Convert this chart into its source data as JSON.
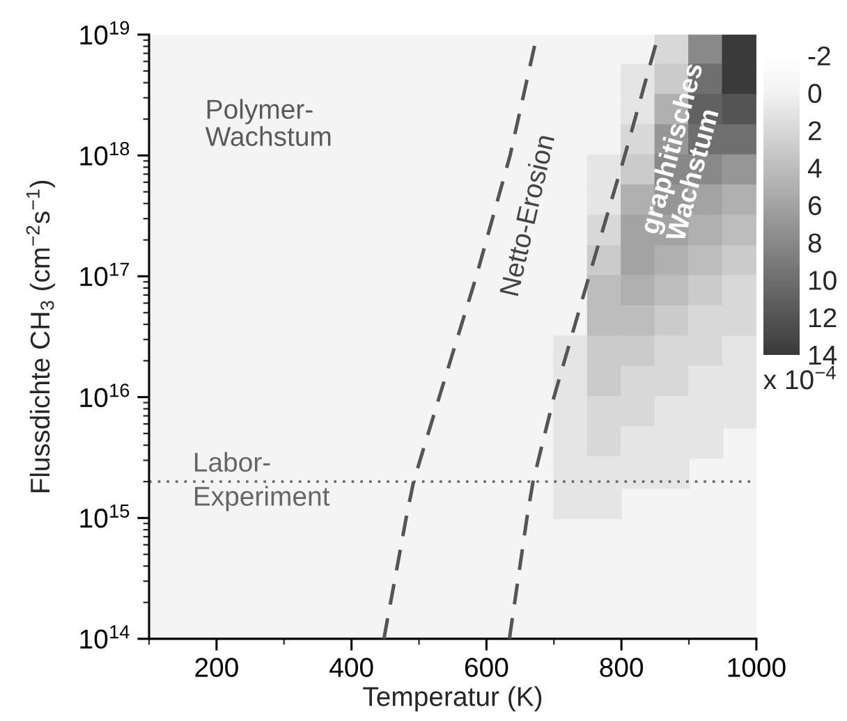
{
  "chart_data": {
    "type": "scatter",
    "xlabel": "Temperatur (K)",
    "ylabel": "Flussdichte CH$_{3}$ (cm$^{−2}$s$^{−1}$)",
    "clabel": "x 10$^{−4}$",
    "clim": [
      14,
      -2
    ],
    "cticks": [
      -2,
      0,
      2,
      4,
      6,
      8,
      10,
      12,
      14
    ],
    "xlim": [
      100,
      1000
    ],
    "xticks": [
      {
        "value": 100,
        "label": null
      },
      200,
      {
        "value": 300,
        "label": null
      },
      400,
      {
        "value": 500,
        "label": null
      },
      600,
      {
        "value": 700,
        "label": null
      },
      800,
      {
        "value": 900,
        "label": null
      },
      1000
    ],
    "ylim": [
      100000000000000.0,
      1e+19
    ],
    "yticks": [
      {
        "value": 100000000000000.0,
        "label": "10$^{14}$"
      },
      {
        "value": 1000000000000000.0,
        "label": "10$^{15}$"
      },
      {
        "value": 1e+16,
        "label": "10$^{16}$"
      },
      {
        "value": 1e+17,
        "label": "10$^{17}$"
      },
      {
        "value": 1e+18,
        "label": "10$^{18}$"
      },
      {
        "value": 1e+19,
        "label": "10$^{19}$"
      }
    ],
    "log": "y",
    "marker": "square",
    "x": [
      875,
      925,
      975,
      825,
      875,
      925,
      975,
      825,
      875,
      925,
      975,
      825,
      875,
      925,
      975,
      775,
      825,
      875,
      925,
      975,
      775,
      825,
      875,
      925,
      975,
      775,
      825,
      875,
      925,
      975,
      775,
      825,
      875,
      925,
      975,
      775,
      825,
      875,
      925,
      975,
      775,
      825,
      875,
      925,
      975,
      725,
      775,
      825,
      875,
      925,
      975,
      725,
      775,
      825,
      875,
      925,
      975,
      725,
      775,
      825,
      875,
      925,
      975,
      725,
      775,
      825,
      875,
      925,
      725,
      775,
      825,
      875,
      725,
      775
    ],
    "values": [
      7.5e+18,
      7.5e+18,
      7.5e+18,
      4.22e+18,
      4.22e+18,
      4.22e+18,
      4.22e+18,
      2.37e+18,
      2.37e+18,
      2.37e+18,
      2.37e+18,
      1.33e+18,
      1.33e+18,
      1.33e+18,
      1.33e+18,
      7.5e+17,
      7.5e+17,
      7.5e+17,
      7.5e+17,
      7.5e+17,
      4.22e+17,
      4.22e+17,
      4.22e+17,
      4.22e+17,
      4.22e+17,
      2.37e+17,
      2.37e+17,
      2.37e+17,
      2.37e+17,
      2.37e+17,
      1.33e+17,
      1.33e+17,
      1.33e+17,
      1.33e+17,
      1.33e+17,
      7.5e+16,
      7.5e+16,
      7.5e+16,
      7.5e+16,
      7.5e+16,
      4.22e+16,
      4.22e+16,
      4.22e+16,
      4.22e+16,
      4.22e+16,
      2.37e+16,
      2.37e+16,
      2.37e+16,
      2.37e+16,
      2.37e+16,
      2.37e+16,
      1.33e+16,
      1.33e+16,
      1.33e+16,
      1.33e+16,
      1.33e+16,
      1.33e+16,
      7500000000000000.0,
      7500000000000000.0,
      7500000000000000.0,
      7500000000000000.0,
      7500000000000000.0,
      7500000000000000.0,
      4220000000000000.0,
      4220000000000000.0,
      4220000000000000.0,
      4220000000000000.0,
      4220000000000000.0,
      2370000000000000.0,
      2370000000000000.0,
      2370000000000000.0,
      2370000000000000.0,
      1330000000000000.0,
      1330000000000000.0
    ],
    "colors": [
      "#d8d8d8",
      "#898989",
      "#3a3a3a",
      "#e5e5e5",
      "#cbcbcb",
      "#6f6f6f",
      "#3a3a3a",
      "#e5e5e5",
      "#b0b0b0",
      "#616161",
      "#545454",
      "#d8d8d8",
      "#969696",
      "#6f6f6f",
      "#6f6f6f",
      "#e5e5e5",
      "#cbcbcb",
      "#898989",
      "#898989",
      "#969696",
      "#e5e5e5",
      "#b0b0b0",
      "#969696",
      "#a3a3a3",
      "#b0b0b0",
      "#d8d8d8",
      "#a3a3a3",
      "#a3a3a3",
      "#b0b0b0",
      "#bdbdbd",
      "#cbcbcb",
      "#a3a3a3",
      "#b0b0b0",
      "#bdbdbd",
      "#cbcbcb",
      "#bdbdbd",
      "#b0b0b0",
      "#bdbdbd",
      "#cbcbcb",
      "#d8d8d8",
      "#bdbdbd",
      "#bdbdbd",
      "#cbcbcb",
      "#d8d8d8",
      "#d8d8d8",
      "#e5e5e5",
      "#cbcbcb",
      "#cbcbcb",
      "#d8d8d8",
      "#d8d8d8",
      "#e5e5e5",
      "#e5e5e5",
      "#cbcbcb",
      "#d8d8d8",
      "#d8d8d8",
      "#e5e5e5",
      "#e5e5e5",
      "#e5e5e5",
      "#d8d8d8",
      "#d8d8d8",
      "#e5e5e5",
      "#e5e5e5",
      "#e5e5e5",
      "#e5e5e5",
      "#d8d8d8",
      "#e5e5e5",
      "#e5e5e5",
      "#e5e5e5",
      "#e5e5e5",
      "#e5e5e5",
      "#e5e5e5",
      "#e5e5e5",
      "#e5e5e5",
      "#e5e5e5"
    ],
    "series": [
      {
        "type": "line",
        "x": [
          448,
          481,
          492,
          530,
          585,
          635,
          675
        ],
        "values": [
          100000000000000.0,
          1000000000000000.0,
          2000000000000000.0,
          1e+16,
          1e+17,
          1e+18,
          1e+19
        ],
        "color": "#555555",
        "line_style": "dashed",
        "marker": "none"
      },
      {
        "type": "line",
        "x": [
          634,
          660,
          669,
          700,
          752,
          805,
          855
        ],
        "values": [
          100000000000000.0,
          1000000000000000.0,
          2000000000000000.0,
          1e+16,
          1e+17,
          1e+18,
          1e+19
        ],
        "color": "#555555",
        "line_style": "dashed",
        "marker": "none"
      }
    ],
    "ref_lines": [
      {
        "axis": "y",
        "value": 2000000000000000.0,
        "label": "Labor-\nExperiment",
        "color": "#666666",
        "line_style": "dotted"
      }
    ],
    "annotations": [
      "Polymer-\nWachstum",
      "Netto-Erosion",
      "graphitisches\nWachstum"
    ]
  }
}
